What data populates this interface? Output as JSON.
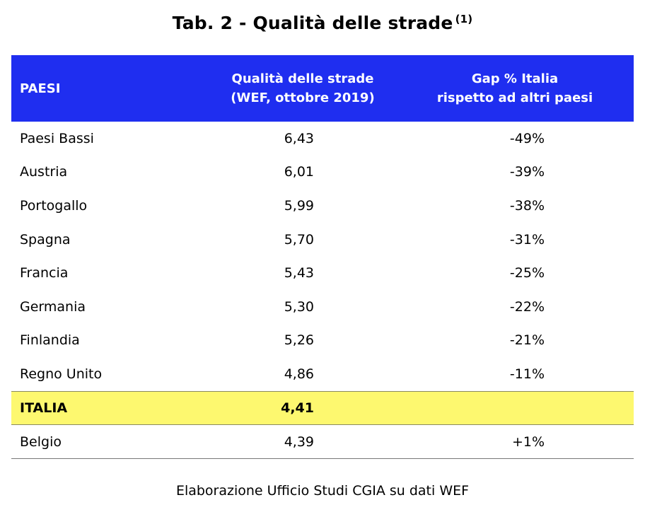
{
  "title": "Tab. 2 - Qualità delle strade",
  "title_note": "(1)",
  "table": {
    "headers": [
      "PAESI",
      "Qualità delle strade",
      "(WEF, ottobre 2019)",
      "Gap % Italia",
      "rispetto ad altri paesi"
    ],
    "rows": [
      {
        "paese": "Paesi Bassi",
        "qualita": "6,43",
        "gap": "-49%"
      },
      {
        "paese": "Austria",
        "qualita": "6,01",
        "gap": "-39%"
      },
      {
        "paese": "Portogallo",
        "qualita": "5,99",
        "gap": "-38%"
      },
      {
        "paese": "Spagna",
        "qualita": "5,70",
        "gap": "-31%"
      },
      {
        "paese": "Francia",
        "qualita": "5,43",
        "gap": "-25%"
      },
      {
        "paese": "Germania",
        "qualita": "5,30",
        "gap": "-22%"
      },
      {
        "paese": "Finlandia",
        "qualita": "5,26",
        "gap": "-21%"
      },
      {
        "paese": "Regno Unito",
        "qualita": "4,86",
        "gap": "-11%"
      },
      {
        "paese": "ITALIA",
        "qualita": "4,41",
        "gap": ""
      },
      {
        "paese": "Belgio",
        "qualita": "4,39",
        "gap": "+1%"
      }
    ]
  },
  "source": "Elaborazione Ufficio Studi CGIA su dati WEF",
  "colors": {
    "header_bg": "#1f2ef0",
    "highlight_bg": "#fdf86f"
  }
}
